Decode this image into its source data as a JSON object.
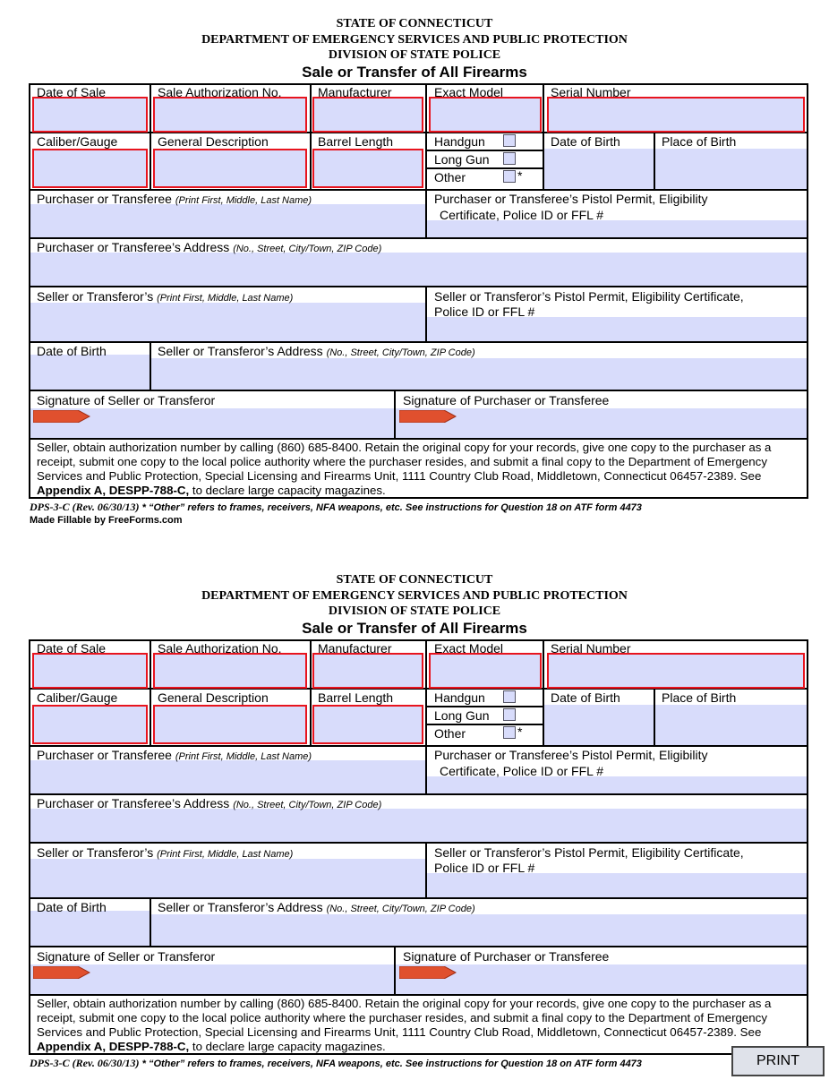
{
  "forms": [
    {
      "header": {
        "state": "STATE OF CONNECTICUT",
        "department": "DEPARTMENT OF EMERGENCY SERVICES AND PUBLIC PROTECTION",
        "division": "DIVISION OF STATE POLICE",
        "title": "Sale or Transfer of All Firearms"
      },
      "fields": {
        "date_of_sale": "Date of Sale",
        "sale_auth": "Sale Authorization No.",
        "manufacturer": "Manufacturer",
        "exact_model": "Exact Model",
        "serial": "Serial Number",
        "caliber": "Caliber/Gauge",
        "description": "General Description",
        "barrel": "Barrel Length",
        "handgun": "Handgun",
        "long_gun": "Long Gun",
        "other": "Other",
        "other_mark": "*",
        "dob": "Date of Birth",
        "pob": "Place of Birth",
        "purchaser_name": {
          "label": "Purchaser or Transferee ",
          "hint": "(Print First, Middle, Last Name)"
        },
        "purchaser_permit": [
          "Purchaser or Transferee’s Pistol Permit, Eligibility",
          "Certificate, Police ID or FFL #"
        ],
        "purchaser_address": {
          "label": "Purchaser or Transferee’s  Address ",
          "hint": "(No., Street, City/Town, ZIP Code)"
        },
        "seller_name": {
          "label": "Seller or Transferor’s ",
          "hint": "(Print First, Middle, Last Name)"
        },
        "seller_permit": [
          "Seller or Transferor’s Pistol Permit, Eligibility Certificate,",
          "Police ID or FFL #"
        ],
        "seller_dob": "Date of Birth",
        "seller_address": {
          "label": "Seller or Transferor’s Address ",
          "hint": "(No., Street, City/Town, ZIP Code)"
        },
        "seller_signature": "Signature of Seller or Transferor",
        "purchaser_signature": "Signature of Purchaser or Transferee"
      },
      "instructions": {
        "text": "Seller, obtain authorization number by calling (860) 685-8400. Retain the original copy for your records, give one copy to the purchaser as a receipt, submit one copy to the local police authority where the purchaser resides, and submit a final copy to the Department of Emergency Services and Public Protection, Special Licensing and Firearms Unit, 1111 Country Club Road, Middletown, Connecticut 06457-2389.  See ",
        "bold": "Appendix A, DESPP-788-C,",
        "end": " to declare large capacity magazines."
      },
      "footer": {
        "form_id": "DPS-3-C ",
        "revision": "(Rev. 06/30/13)",
        "note": " * “Other” refers to frames, receivers, NFA weapons, etc. See instructions for Question 18 on ATF form 4473"
      },
      "credit": "Made Fillable by FreeForms.com"
    },
    {
      "header": {
        "state": "STATE OF CONNECTICUT",
        "department": "DEPARTMENT OF EMERGENCY SERVICES AND PUBLIC PROTECTION",
        "division": "DIVISION OF STATE POLICE",
        "title": "Sale or Transfer of All Firearms"
      },
      "fields": {
        "date_of_sale": "Date of Sale",
        "sale_auth": "Sale Authorization No.",
        "manufacturer": "Manufacturer",
        "exact_model": "Exact Model",
        "serial": "Serial Number",
        "caliber": "Caliber/Gauge",
        "description": "General Description",
        "barrel": "Barrel Length",
        "handgun": "Handgun",
        "long_gun": "Long Gun",
        "other": "Other",
        "other_mark": "*",
        "dob": "Date of Birth",
        "pob": "Place of Birth",
        "purchaser_name": {
          "label": "Purchaser or Transferee ",
          "hint": "(Print First, Middle, Last Name)"
        },
        "purchaser_permit": [
          "Purchaser or Transferee’s Pistol Permit, Eligibility",
          "Certificate, Police ID or FFL #"
        ],
        "purchaser_address": {
          "label": "Purchaser or Transferee’s  Address ",
          "hint": "(No., Street, City/Town, ZIP Code)"
        },
        "seller_name": {
          "label": "Seller  or Transferor’s ",
          "hint": "(Print First, Middle, Last Name)"
        },
        "seller_permit": [
          "Seller or Transferor’s Pistol Permit, Eligibility Certificate,",
          "Police ID or FFL #"
        ],
        "seller_dob": "Date of Birth",
        "seller_address": {
          "label": "Seller or Transferor’s Address ",
          "hint": "(No., Street, City/Town, ZIP Code)"
        },
        "seller_signature": "Signature of Seller or Transferor",
        "purchaser_signature": "Signature of Purchaser or Transferee"
      },
      "instructions": {
        "text": "Seller, obtain authorization number by calling (860) 685-8400. Retain the original copy for your records, give one copy to the purchaser as a receipt, submit one copy to the local police authority where the purchaser resides, and submit a final copy to the Department of Emergency Services and Public Protection, Special Licensing and Firearms Unit, 1111 Country Club Road, Middletown, Connecticut 06457-2389.  See ",
        "bold": "Appendix A, DESPP-788-C,",
        "end": " to declare large capacity magazines."
      },
      "footer": {
        "form_id": "DPS-3-C ",
        "revision": "(Rev. 06/30/13)",
        "note": " * “Other” refers to frames, receivers, NFA weapons, etc. See instructions for Question 18 on ATF form 4473"
      }
    }
  ],
  "print_button": "PRINT"
}
